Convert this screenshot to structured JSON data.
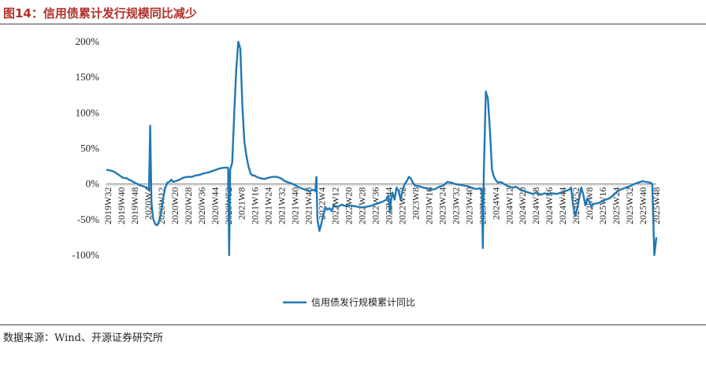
{
  "title": "图14：信用债累计发行规模同比减少",
  "source": "数据来源：Wind、开源证券研究所",
  "chart_data": {
    "type": "line",
    "ylim": [
      -100,
      200
    ],
    "yticks": [
      "200%",
      "150%",
      "100%",
      "50%",
      "0%",
      "-50%",
      "-100%"
    ],
    "ytick_values": [
      200,
      150,
      100,
      50,
      0,
      -50,
      -100
    ],
    "xticks": [
      "2019W32",
      "2019W40",
      "2019W48",
      "2020W4",
      "2020W12",
      "2020W20",
      "2020W28",
      "2020W36",
      "2020W44",
      "2020W52",
      "2021W8",
      "2021W16",
      "2021W24",
      "2021W32",
      "2021W40",
      "2021W48",
      "2022W4",
      "2022W12",
      "2022W20",
      "2022W28",
      "2022W36",
      "2022W44",
      "2022W52",
      "2023W8",
      "2023W16",
      "2023W24",
      "2023W32",
      "2023W40",
      "2023W48",
      "2024W4",
      "2024W12",
      "2024W20",
      "2024W28",
      "2024W36",
      "2024W44",
      "2024W52",
      "2025W8",
      "2025W16",
      "2025W24",
      "2025W32",
      "2025W40",
      "2025W48"
    ],
    "legend_position": "bottom",
    "line_color": "#1f78b4",
    "series": [
      {
        "name": "信用债发行规模累计同比",
        "points": [
          [
            0,
            20
          ],
          [
            2,
            19
          ],
          [
            4,
            17
          ],
          [
            6,
            13
          ],
          [
            8,
            9
          ],
          [
            10,
            8
          ],
          [
            12,
            5
          ],
          [
            14,
            2
          ],
          [
            16,
            -1
          ],
          [
            18,
            -3
          ],
          [
            20,
            -5
          ],
          [
            21,
            -8
          ],
          [
            21.6,
            82
          ],
          [
            22.2,
            -25
          ],
          [
            23,
            -48
          ],
          [
            24,
            -56
          ],
          [
            25,
            -58
          ],
          [
            26,
            -52
          ],
          [
            27,
            -40
          ],
          [
            28,
            -20
          ],
          [
            29,
            -5
          ],
          [
            30,
            2
          ],
          [
            31,
            3
          ],
          [
            32,
            6
          ],
          [
            33,
            3
          ],
          [
            34,
            4
          ],
          [
            36,
            6
          ],
          [
            38,
            9
          ],
          [
            40,
            10
          ],
          [
            42,
            10
          ],
          [
            44,
            12
          ],
          [
            46,
            13
          ],
          [
            48,
            15
          ],
          [
            50,
            16
          ],
          [
            52,
            18
          ],
          [
            54,
            20
          ],
          [
            56,
            22
          ],
          [
            58,
            23
          ],
          [
            60,
            23
          ],
          [
            60.5,
            -100
          ],
          [
            61,
            20
          ],
          [
            62,
            30
          ],
          [
            63,
            100
          ],
          [
            64,
            160
          ],
          [
            65,
            200
          ],
          [
            66,
            190
          ],
          [
            67,
            110
          ],
          [
            68,
            60
          ],
          [
            69,
            40
          ],
          [
            70,
            25
          ],
          [
            71,
            15
          ],
          [
            72,
            12
          ],
          [
            73,
            12
          ],
          [
            74,
            10
          ],
          [
            76,
            8
          ],
          [
            78,
            7
          ],
          [
            80,
            9
          ],
          [
            82,
            10
          ],
          [
            84,
            10
          ],
          [
            86,
            8
          ],
          [
            88,
            4
          ],
          [
            90,
            2
          ],
          [
            92,
            0
          ],
          [
            94,
            -3
          ],
          [
            96,
            -6
          ],
          [
            98,
            -8
          ],
          [
            100,
            -10
          ],
          [
            102,
            -8
          ],
          [
            103,
            -10
          ],
          [
            103.5,
            10
          ],
          [
            104,
            -50
          ],
          [
            105,
            -66
          ],
          [
            106,
            -55
          ],
          [
            107,
            -42
          ],
          [
            108,
            -33
          ],
          [
            109,
            -36
          ],
          [
            110,
            -34
          ],
          [
            111,
            -38
          ],
          [
            112,
            -30
          ],
          [
            114,
            -32
          ],
          [
            116,
            -29
          ],
          [
            118,
            -31
          ],
          [
            120,
            -30
          ],
          [
            122,
            -31
          ],
          [
            124,
            -32
          ],
          [
            126,
            -33
          ],
          [
            128,
            -32
          ],
          [
            130,
            -31
          ],
          [
            132,
            -29
          ],
          [
            134,
            -27
          ],
          [
            136,
            -25
          ],
          [
            138,
            -22
          ],
          [
            139,
            -16
          ],
          [
            139.7,
            -40
          ],
          [
            140.3,
            -22
          ],
          [
            141,
            -12
          ],
          [
            142,
            -22
          ],
          [
            143,
            -5
          ],
          [
            144,
            -10
          ],
          [
            145,
            -22
          ],
          [
            146,
            -8
          ],
          [
            147,
            0
          ],
          [
            148,
            4
          ],
          [
            149,
            10
          ],
          [
            150,
            8
          ],
          [
            151,
            2
          ],
          [
            152,
            -2
          ],
          [
            154,
            -3
          ],
          [
            156,
            -5
          ],
          [
            158,
            -6
          ],
          [
            160,
            -8
          ],
          [
            162,
            -7
          ],
          [
            164,
            -4
          ],
          [
            166,
            -2
          ],
          [
            168,
            3
          ],
          [
            170,
            2
          ],
          [
            172,
            0
          ],
          [
            174,
            -1
          ],
          [
            176,
            -2
          ],
          [
            178,
            -3
          ],
          [
            180,
            -5
          ],
          [
            182,
            -7
          ],
          [
            184,
            -6
          ],
          [
            185,
            -10
          ],
          [
            185.5,
            -90
          ],
          [
            186,
            20
          ],
          [
            187,
            130
          ],
          [
            188,
            120
          ],
          [
            189,
            75
          ],
          [
            190,
            20
          ],
          [
            191,
            10
          ],
          [
            192,
            5
          ],
          [
            193,
            2
          ],
          [
            194,
            3
          ],
          [
            195,
            2
          ],
          [
            196,
            0
          ],
          [
            198,
            -3
          ],
          [
            200,
            -5
          ],
          [
            202,
            -4
          ],
          [
            204,
            -8
          ],
          [
            206,
            -10
          ],
          [
            208,
            -12
          ],
          [
            210,
            -14
          ],
          [
            212,
            -12
          ],
          [
            214,
            -15
          ],
          [
            216,
            -13
          ],
          [
            218,
            -15
          ],
          [
            220,
            -13
          ],
          [
            222,
            -14
          ],
          [
            224,
            -12
          ],
          [
            226,
            -10
          ],
          [
            228,
            -8
          ],
          [
            229,
            -5
          ],
          [
            230,
            -30
          ],
          [
            231,
            -45
          ],
          [
            232,
            -35
          ],
          [
            233,
            -20
          ],
          [
            234,
            -5
          ],
          [
            235,
            -15
          ],
          [
            236,
            -30
          ],
          [
            237,
            -20
          ],
          [
            238,
            -25
          ],
          [
            239,
            -32
          ],
          [
            240,
            -28
          ],
          [
            242,
            -27
          ],
          [
            244,
            -25
          ],
          [
            246,
            -22
          ],
          [
            248,
            -20
          ],
          [
            250,
            -15
          ],
          [
            252,
            -10
          ],
          [
            254,
            -7
          ],
          [
            256,
            -5
          ],
          [
            258,
            -3
          ],
          [
            260,
            0
          ],
          [
            262,
            2
          ],
          [
            264,
            4
          ],
          [
            266,
            3
          ],
          [
            268,
            2
          ],
          [
            269,
            0
          ],
          [
            270,
            -100
          ],
          [
            271,
            -75
          ]
        ]
      }
    ]
  }
}
